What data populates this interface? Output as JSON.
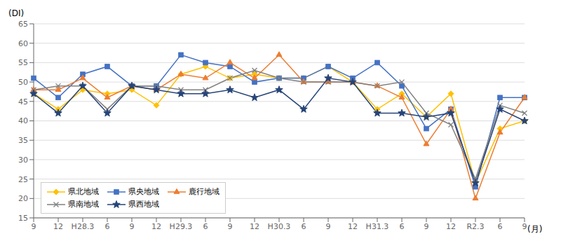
{
  "chart_data": {
    "type": "line",
    "categories": [
      "9",
      "12",
      "H28.3",
      "6",
      "9",
      "12",
      "H29.3",
      "6",
      "9",
      "12",
      "H30.3",
      "6",
      "9",
      "12",
      "H31.3",
      "6",
      "9",
      "12",
      "R2.3",
      "6",
      "9"
    ],
    "series": [
      {
        "name": "県北地域",
        "color": "#FFC000",
        "marker": "diamond",
        "values": [
          47,
          43,
          48,
          47,
          48,
          44,
          52,
          54,
          51,
          52,
          51,
          51,
          54,
          50,
          43,
          47,
          41,
          47,
          24,
          38,
          40
        ]
      },
      {
        "name": "県央地域",
        "color": "#4472C4",
        "marker": "square",
        "values": [
          51,
          46,
          52,
          54,
          49,
          49,
          57,
          55,
          54,
          50,
          51,
          51,
          54,
          51,
          55,
          49,
          38,
          43,
          23,
          46,
          46
        ]
      },
      {
        "name": "鹿行地域",
        "color": "#ED7D31",
        "marker": "triangle",
        "values": [
          48,
          48,
          51,
          46,
          49,
          48,
          52,
          51,
          55,
          51,
          57,
          50,
          50,
          50,
          49,
          46,
          34,
          43,
          20,
          37,
          46
        ]
      },
      {
        "name": "県南地域",
        "color": "#808080",
        "marker": "x",
        "values": [
          48,
          49,
          49,
          43,
          49,
          49,
          48,
          48,
          51,
          53,
          51,
          50,
          50,
          50,
          49,
          50,
          42,
          39,
          25,
          44,
          42
        ]
      },
      {
        "name": "県西地域",
        "color": "#264478",
        "marker": "star",
        "values": [
          47,
          42,
          49,
          42,
          49,
          48,
          47,
          47,
          48,
          46,
          48,
          43,
          51,
          50,
          42,
          42,
          41,
          42,
          24,
          43,
          40
        ]
      }
    ],
    "ylim": [
      15,
      65
    ],
    "yticks": [
      15,
      20,
      25,
      30,
      35,
      40,
      45,
      50,
      55,
      60,
      65
    ],
    "ylabel": "(DI)",
    "xlabel": "(月)",
    "grid": true,
    "legend": "lower left"
  }
}
